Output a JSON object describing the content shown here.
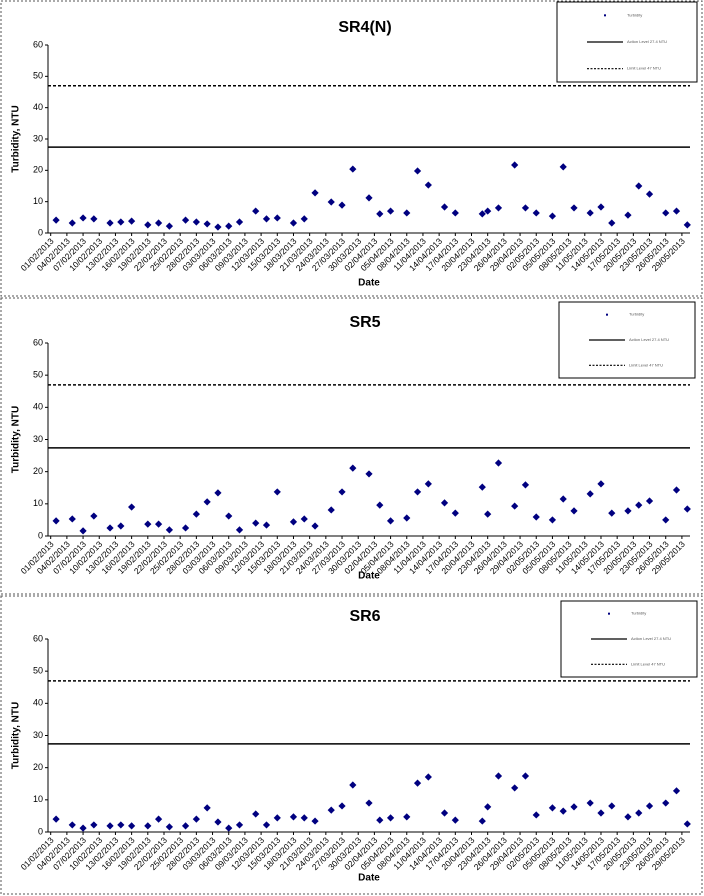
{
  "chart_data": [
    {
      "type": "scatter",
      "title": "SR4(N)",
      "x_label": "Date",
      "y_label": "Turbidity, NTU",
      "xlim": [
        -0.5,
        118.5
      ],
      "ylim": [
        0,
        60
      ],
      "yticks": [
        0,
        10,
        20,
        30,
        40,
        50,
        60
      ],
      "xticks": [
        {
          "value": 0,
          "label": "01/02/2013"
        },
        {
          "value": 3,
          "label": "04/02/2013"
        },
        {
          "value": 6,
          "label": "07/02/2013"
        },
        {
          "value": 9,
          "label": "10/02/2013"
        },
        {
          "value": 12,
          "label": "13/02/2013"
        },
        {
          "value": 15,
          "label": "16/02/2013"
        },
        {
          "value": 18,
          "label": "19/02/2013"
        },
        {
          "value": 21,
          "label": "22/02/2013"
        },
        {
          "value": 24,
          "label": "25/02/2013"
        },
        {
          "value": 27,
          "label": "28/02/2013"
        },
        {
          "value": 30,
          "label": "03/03/2013"
        },
        {
          "value": 33,
          "label": "06/03/2013"
        },
        {
          "value": 36,
          "label": "09/03/2013"
        },
        {
          "value": 39,
          "label": "12/03/2013"
        },
        {
          "value": 42,
          "label": "15/03/2013"
        },
        {
          "value": 45,
          "label": "18/03/2013"
        },
        {
          "value": 48,
          "label": "21/03/2013"
        },
        {
          "value": 51,
          "label": "24/03/2013"
        },
        {
          "value": 54,
          "label": "27/03/2013"
        },
        {
          "value": 57,
          "label": "30/03/2013"
        },
        {
          "value": 60,
          "label": "02/04/2013"
        },
        {
          "value": 63,
          "label": "05/04/2013"
        },
        {
          "value": 66,
          "label": "08/04/2013"
        },
        {
          "value": 69,
          "label": "11/04/2013"
        },
        {
          "value": 72,
          "label": "14/04/2013"
        },
        {
          "value": 75,
          "label": "17/04/2013"
        },
        {
          "value": 78,
          "label": "20/04/2013"
        },
        {
          "value": 81,
          "label": "23/04/2013"
        },
        {
          "value": 84,
          "label": "26/04/2013"
        },
        {
          "value": 87,
          "label": "29/04/2013"
        },
        {
          "value": 90,
          "label": "02/05/2013"
        },
        {
          "value": 93,
          "label": "05/05/2013"
        },
        {
          "value": 96,
          "label": "08/05/2013"
        },
        {
          "value": 99,
          "label": "11/05/2013"
        },
        {
          "value": 102,
          "label": "14/05/2013"
        },
        {
          "value": 105,
          "label": "17/05/2013"
        },
        {
          "value": 108,
          "label": "20/05/2013"
        },
        {
          "value": 111,
          "label": "23/05/2013"
        },
        {
          "value": 114,
          "label": "26/05/2013"
        },
        {
          "value": 117,
          "label": "29/05/2013"
        }
      ],
      "series": [
        {
          "name": "Turbidity",
          "color": "#000080",
          "x": [
            1,
            4,
            6,
            8,
            11,
            13,
            15,
            18,
            20,
            22,
            25,
            27,
            29,
            31,
            33,
            35,
            38,
            40,
            42,
            45,
            47,
            49,
            52,
            54,
            56,
            59,
            61,
            63,
            66,
            68,
            70,
            73,
            75,
            80,
            81,
            83,
            86,
            88,
            90,
            93,
            95,
            97,
            100,
            102,
            104,
            107,
            109,
            111,
            114,
            116,
            118
          ],
          "values": [
            4.1,
            3.2,
            4.8,
            4.5,
            3.2,
            3.5,
            3.8,
            2.6,
            3.2,
            2.2,
            4.1,
            3.5,
            2.9,
            1.9,
            2.2,
            3.5,
            7.0,
            4.5,
            4.8,
            3.2,
            4.5,
            12.8,
            9.9,
            8.9,
            20.4,
            11.2,
            6.1,
            7.0,
            6.4,
            19.8,
            15.3,
            8.3,
            6.4,
            6.1,
            7.0,
            8.0,
            21.7,
            8.0,
            6.4,
            5.4,
            21.1,
            8.0,
            6.4,
            8.3,
            3.2,
            5.7,
            15.0,
            12.4,
            6.4,
            7.0,
            2.6
          ]
        }
      ],
      "hlines": [
        {
          "name": "Action Level 27.4 NTU",
          "value": 27.4,
          "style": "solid",
          "color": "#000000"
        },
        {
          "name": "Limit Level 47 NTU",
          "value": 47,
          "style": "dashed",
          "color": "#000000"
        }
      ]
    },
    {
      "type": "scatter",
      "title": "SR5",
      "x_label": "Date",
      "y_label": "Turbidity, NTU",
      "xlim": [
        -0.5,
        118.5
      ],
      "ylim": [
        0,
        60
      ],
      "yticks": [
        0,
        10,
        20,
        30,
        40,
        50,
        60
      ],
      "xticks": [
        {
          "value": 0,
          "label": "01/02/2013"
        },
        {
          "value": 3,
          "label": "04/02/2013"
        },
        {
          "value": 6,
          "label": "07/02/2013"
        },
        {
          "value": 9,
          "label": "10/02/2013"
        },
        {
          "value": 12,
          "label": "13/02/2013"
        },
        {
          "value": 15,
          "label": "16/02/2013"
        },
        {
          "value": 18,
          "label": "19/02/2013"
        },
        {
          "value": 21,
          "label": "22/02/2013"
        },
        {
          "value": 24,
          "label": "25/02/2013"
        },
        {
          "value": 27,
          "label": "28/02/2013"
        },
        {
          "value": 30,
          "label": "03/03/2013"
        },
        {
          "value": 33,
          "label": "06/03/2013"
        },
        {
          "value": 36,
          "label": "09/03/2013"
        },
        {
          "value": 39,
          "label": "12/03/2013"
        },
        {
          "value": 42,
          "label": "15/03/2013"
        },
        {
          "value": 45,
          "label": "18/03/2013"
        },
        {
          "value": 48,
          "label": "21/03/2013"
        },
        {
          "value": 51,
          "label": "24/03/2013"
        },
        {
          "value": 54,
          "label": "27/03/2013"
        },
        {
          "value": 57,
          "label": "30/03/2013"
        },
        {
          "value": 60,
          "label": "02/04/2013"
        },
        {
          "value": 63,
          "label": "05/04/2013"
        },
        {
          "value": 66,
          "label": "08/04/2013"
        },
        {
          "value": 69,
          "label": "11/04/2013"
        },
        {
          "value": 72,
          "label": "14/04/2013"
        },
        {
          "value": 75,
          "label": "17/04/2013"
        },
        {
          "value": 78,
          "label": "20/04/2013"
        },
        {
          "value": 81,
          "label": "23/04/2013"
        },
        {
          "value": 84,
          "label": "26/04/2013"
        },
        {
          "value": 87,
          "label": "29/04/2013"
        },
        {
          "value": 90,
          "label": "02/05/2013"
        },
        {
          "value": 93,
          "label": "05/05/2013"
        },
        {
          "value": 96,
          "label": "08/05/2013"
        },
        {
          "value": 99,
          "label": "11/05/2013"
        },
        {
          "value": 102,
          "label": "14/05/2013"
        },
        {
          "value": 105,
          "label": "17/05/2013"
        },
        {
          "value": 108,
          "label": "20/05/2013"
        },
        {
          "value": 111,
          "label": "23/05/2013"
        },
        {
          "value": 114,
          "label": "26/05/2013"
        },
        {
          "value": 117,
          "label": "29/05/2013"
        }
      ],
      "series": [
        {
          "name": "Turbidity",
          "color": "#000080",
          "x": [
            1,
            4,
            6,
            8,
            11,
            13,
            15,
            18,
            20,
            22,
            25,
            27,
            29,
            31,
            33,
            35,
            38,
            40,
            42,
            45,
            47,
            49,
            52,
            54,
            56,
            59,
            61,
            63,
            66,
            68,
            70,
            73,
            75,
            80,
            81,
            83,
            86,
            88,
            90,
            93,
            95,
            97,
            100,
            102,
            104,
            107,
            109,
            111,
            114,
            116,
            118
          ],
          "values": [
            4.7,
            5.3,
            1.6,
            6.2,
            2.5,
            3.1,
            9.0,
            3.7,
            3.7,
            1.9,
            2.5,
            6.8,
            10.6,
            13.4,
            6.2,
            1.9,
            4.0,
            3.4,
            13.7,
            4.4,
            5.3,
            3.1,
            8.1,
            13.7,
            21.1,
            19.3,
            9.6,
            4.7,
            5.6,
            13.7,
            16.2,
            10.3,
            7.1,
            15.2,
            6.8,
            22.7,
            9.3,
            15.9,
            5.9,
            5.0,
            11.5,
            7.8,
            13.1,
            16.2,
            7.1,
            7.8,
            9.6,
            10.9,
            5.0,
            14.3,
            8.4
          ]
        }
      ],
      "hlines": [
        {
          "name": "Action Level 27.4 NTU",
          "value": 27.4,
          "style": "solid",
          "color": "#000000"
        },
        {
          "name": "Limit Level 47 NTU",
          "value": 47,
          "style": "dashed",
          "color": "#000000"
        }
      ]
    },
    {
      "type": "scatter",
      "title": "SR6",
      "x_label": "Date",
      "y_label": "Turbidity, NTU",
      "xlim": [
        -0.5,
        118.5
      ],
      "ylim": [
        0,
        60
      ],
      "yticks": [
        0,
        10,
        20,
        30,
        40,
        50,
        60
      ],
      "xticks": [
        {
          "value": 0,
          "label": "01/02/2013"
        },
        {
          "value": 3,
          "label": "04/02/2013"
        },
        {
          "value": 6,
          "label": "07/02/2013"
        },
        {
          "value": 9,
          "label": "10/02/2013"
        },
        {
          "value": 12,
          "label": "13/02/2013"
        },
        {
          "value": 15,
          "label": "16/02/2013"
        },
        {
          "value": 18,
          "label": "19/02/2013"
        },
        {
          "value": 21,
          "label": "22/02/2013"
        },
        {
          "value": 24,
          "label": "25/02/2013"
        },
        {
          "value": 27,
          "label": "28/02/2013"
        },
        {
          "value": 30,
          "label": "03/03/2013"
        },
        {
          "value": 33,
          "label": "06/03/2013"
        },
        {
          "value": 36,
          "label": "09/03/2013"
        },
        {
          "value": 39,
          "label": "12/03/2013"
        },
        {
          "value": 42,
          "label": "15/03/2013"
        },
        {
          "value": 45,
          "label": "18/03/2013"
        },
        {
          "value": 48,
          "label": "21/03/2013"
        },
        {
          "value": 51,
          "label": "24/03/2013"
        },
        {
          "value": 54,
          "label": "27/03/2013"
        },
        {
          "value": 57,
          "label": "30/03/2013"
        },
        {
          "value": 60,
          "label": "02/04/2013"
        },
        {
          "value": 63,
          "label": "05/04/2013"
        },
        {
          "value": 66,
          "label": "08/04/2013"
        },
        {
          "value": 69,
          "label": "11/04/2013"
        },
        {
          "value": 72,
          "label": "14/04/2013"
        },
        {
          "value": 75,
          "label": "17/04/2013"
        },
        {
          "value": 78,
          "label": "20/04/2013"
        },
        {
          "value": 81,
          "label": "23/04/2013"
        },
        {
          "value": 84,
          "label": "26/04/2013"
        },
        {
          "value": 87,
          "label": "29/04/2013"
        },
        {
          "value": 90,
          "label": "02/05/2013"
        },
        {
          "value": 93,
          "label": "05/05/2013"
        },
        {
          "value": 96,
          "label": "08/05/2013"
        },
        {
          "value": 99,
          "label": "11/05/2013"
        },
        {
          "value": 102,
          "label": "14/05/2013"
        },
        {
          "value": 105,
          "label": "17/05/2013"
        },
        {
          "value": 108,
          "label": "20/05/2013"
        },
        {
          "value": 111,
          "label": "23/05/2013"
        },
        {
          "value": 114,
          "label": "26/05/2013"
        },
        {
          "value": 117,
          "label": "29/05/2013"
        }
      ],
      "series": [
        {
          "name": "Turbidity",
          "color": "#000080",
          "x": [
            1,
            4,
            6,
            8,
            11,
            13,
            15,
            18,
            20,
            22,
            25,
            27,
            29,
            31,
            33,
            35,
            38,
            40,
            42,
            45,
            47,
            49,
            52,
            54,
            56,
            59,
            61,
            63,
            66,
            68,
            70,
            73,
            75,
            80,
            81,
            83,
            86,
            88,
            90,
            93,
            95,
            97,
            100,
            102,
            104,
            107,
            109,
            111,
            114,
            116,
            118
          ],
          "values": [
            4.0,
            2.2,
            1.2,
            2.2,
            1.9,
            2.2,
            1.9,
            1.9,
            4.0,
            1.6,
            1.9,
            4.0,
            7.5,
            3.1,
            1.2,
            2.2,
            5.6,
            2.2,
            4.4,
            4.7,
            4.4,
            3.4,
            6.8,
            8.1,
            14.6,
            9.0,
            3.7,
            4.4,
            4.7,
            15.2,
            17.1,
            5.9,
            3.7,
            3.4,
            7.8,
            17.4,
            13.7,
            17.4,
            5.3,
            7.5,
            6.5,
            7.8,
            9.0,
            5.9,
            8.1,
            4.7,
            5.9,
            8.1,
            9.0,
            12.8,
            2.5
          ]
        }
      ],
      "hlines": [
        {
          "name": "Action Level 27.4 NTU",
          "value": 27.4,
          "style": "solid",
          "color": "#000000"
        },
        {
          "name": "Limit Level 47 NTU",
          "value": 47,
          "style": "dashed",
          "color": "#000000"
        }
      ]
    }
  ]
}
